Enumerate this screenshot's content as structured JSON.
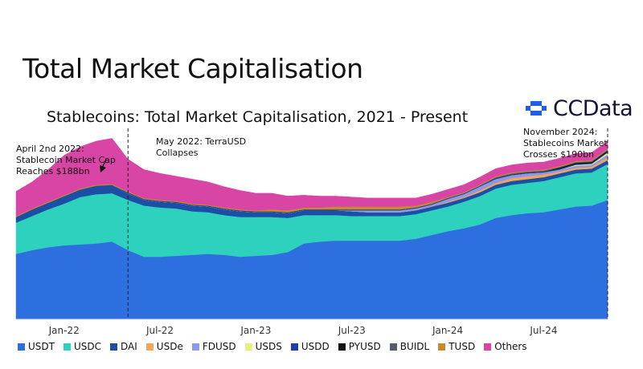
{
  "page": {
    "title": "Total Market Capitalisation"
  },
  "logo": {
    "text": "CCData"
  },
  "chart_data": {
    "type": "area",
    "title": "Stablecoins: Total Market Capitalisation, 2021 - Present",
    "xlabel": "",
    "ylabel": "",
    "x_tick_labels": [
      "Jan-22",
      "Jul-22",
      "Jan-23",
      "Jul-23",
      "Jan-24",
      "Jul-24"
    ],
    "x_range": [
      "2021-10",
      "2024-11"
    ],
    "stacked": true,
    "grid": false,
    "legend_position": "bottom",
    "x": [
      "2021-10",
      "2021-11",
      "2021-12",
      "2022-01",
      "2022-02",
      "2022-03",
      "2022-04",
      "2022-05",
      "2022-06",
      "2022-07",
      "2022-08",
      "2022-09",
      "2022-10",
      "2022-11",
      "2022-12",
      "2023-01",
      "2023-02",
      "2023-03",
      "2023-04",
      "2023-05",
      "2023-06",
      "2023-07",
      "2023-08",
      "2023-09",
      "2023-10",
      "2023-11",
      "2023-12",
      "2024-01",
      "2024-02",
      "2024-03",
      "2024-04",
      "2024-05",
      "2024-06",
      "2024-07",
      "2024-08",
      "2024-09",
      "2024-10",
      "2024-11"
    ],
    "series": [
      {
        "name": "USDT",
        "color": "#2e6fe0",
        "values": [
          69,
          73,
          76,
          78,
          79,
          80,
          82,
          73,
          66,
          66,
          67,
          68,
          69,
          68,
          66,
          67,
          68,
          71,
          80,
          82,
          83,
          83,
          83,
          83,
          83,
          85,
          89,
          93,
          96,
          100,
          107,
          110,
          112,
          113,
          116,
          119,
          120,
          126
        ]
      },
      {
        "name": "USDC",
        "color": "#2ed1be",
        "values": [
          33,
          36,
          40,
          44,
          50,
          52,
          51,
          53,
          54,
          52,
          50,
          46,
          44,
          42,
          42,
          41,
          40,
          36,
          30,
          28,
          27,
          26,
          26,
          26,
          26,
          26,
          26,
          26,
          28,
          30,
          31,
          32,
          32,
          33,
          34,
          35,
          35,
          38
        ]
      },
      {
        "name": "DAI",
        "color": "#1b4fa6",
        "values": [
          6,
          7,
          7,
          8,
          8,
          9,
          9,
          7,
          6,
          6,
          6,
          6,
          6,
          6,
          6,
          5,
          5,
          5,
          5,
          5,
          5,
          5,
          4,
          4,
          4,
          4,
          4,
          4,
          4,
          4,
          4,
          4,
          4,
          4,
          4,
          4,
          4,
          4
        ]
      },
      {
        "name": "USDe",
        "color": "#f2a65a",
        "values": [
          0,
          0,
          0,
          0,
          0,
          0,
          0,
          0,
          0,
          0,
          0,
          0,
          0,
          0,
          0,
          0,
          0,
          0,
          0,
          0,
          0,
          0,
          0,
          0,
          0,
          0,
          0,
          1,
          1,
          2,
          2,
          3,
          3,
          3,
          2,
          2,
          2,
          3
        ]
      },
      {
        "name": "FDUSD",
        "color": "#8f97e8",
        "values": [
          0,
          0,
          0,
          0,
          0,
          0,
          0,
          0,
          0,
          0,
          0,
          0,
          0,
          0,
          0,
          0,
          0,
          0,
          0,
          0,
          0,
          1,
          2,
          2,
          2,
          2,
          2,
          3,
          3,
          4,
          4,
          3,
          3,
          2,
          2,
          2,
          2,
          3
        ]
      },
      {
        "name": "USDS",
        "color": "#e6f07a",
        "values": [
          0,
          0,
          0,
          0,
          0,
          0,
          0,
          0,
          0,
          0,
          0,
          0,
          0,
          0,
          0,
          0,
          0,
          0,
          0,
          0,
          0,
          0,
          0,
          0,
          0,
          0,
          0,
          0,
          0,
          0,
          0,
          0,
          0,
          0,
          0,
          1,
          1,
          2
        ]
      },
      {
        "name": "USDD",
        "color": "#1e3fa0",
        "values": [
          0,
          0,
          0,
          0,
          0,
          0,
          0,
          1,
          1,
          1,
          1,
          1,
          1,
          1,
          1,
          1,
          1,
          1,
          1,
          1,
          1,
          1,
          1,
          1,
          1,
          1,
          1,
          1,
          1,
          1,
          1,
          1,
          1,
          1,
          1,
          1,
          1,
          1
        ]
      },
      {
        "name": "PYUSD",
        "color": "#111111",
        "values": [
          0,
          0,
          0,
          0,
          0,
          0,
          0,
          0,
          0,
          0,
          0,
          0,
          0,
          0,
          0,
          0,
          0,
          0,
          0,
          0,
          0,
          0,
          0,
          0,
          0,
          0,
          0,
          0,
          0,
          0,
          0,
          0,
          0,
          0,
          1,
          1,
          1,
          1
        ]
      },
      {
        "name": "BUIDL",
        "color": "#555d6b",
        "values": [
          0,
          0,
          0,
          0,
          0,
          0,
          0,
          0,
          0,
          0,
          0,
          0,
          0,
          0,
          0,
          0,
          0,
          0,
          0,
          0,
          0,
          0,
          0,
          0,
          0,
          0,
          0,
          0,
          0,
          0,
          1,
          1,
          1,
          1,
          1,
          1,
          1,
          1
        ]
      },
      {
        "name": "TUSD",
        "color": "#c98a2e",
        "values": [
          1,
          1,
          1,
          1,
          1,
          1,
          1,
          1,
          1,
          1,
          1,
          1,
          1,
          1,
          1,
          1,
          2,
          2,
          2,
          2,
          3,
          3,
          3,
          3,
          3,
          2,
          2,
          1,
          1,
          1,
          1,
          1,
          1,
          1,
          1,
          1,
          1,
          1
        ]
      },
      {
        "name": "Others",
        "color": "#d845a4",
        "values": [
          26,
          28,
          34,
          42,
          44,
          46,
          48,
          34,
          30,
          28,
          26,
          26,
          24,
          22,
          20,
          18,
          17,
          15,
          13,
          12,
          11,
          10,
          9,
          9,
          9,
          8,
          8,
          8,
          8,
          8,
          8,
          8,
          8,
          8,
          8,
          8,
          8,
          8
        ]
      }
    ],
    "annotations": [
      {
        "date": "2022-04",
        "text": "April 2nd 2022:\nStablecoin Market Cap\nReaches $188bn"
      },
      {
        "date": "2022-05",
        "text": "May 2022: TerraUSD\nCollapses"
      },
      {
        "date": "2024-11",
        "text": "November 2024:\nStablecoins Market\nCrosses $190bn"
      }
    ]
  }
}
